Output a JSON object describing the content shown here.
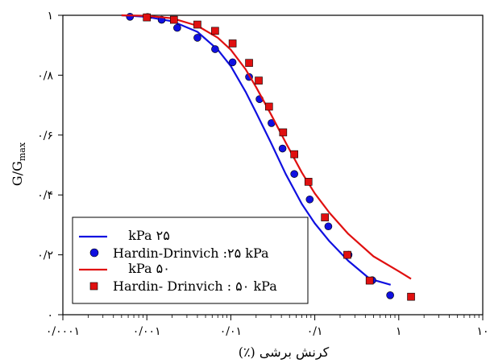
{
  "chart_data": {
    "type": "scatter",
    "x_scale": "log",
    "xlim": [
      0.0001,
      10
    ],
    "ylim": [
      0,
      1
    ],
    "xlabel": "کرنش برشی (٪)",
    "ylabel_main": "G/G",
    "ylabel_sub": "max",
    "x_ticks": [
      {
        "value": 0.0001,
        "label": "۰/۰۰۰۱"
      },
      {
        "value": 0.001,
        "label": "۰/۰۰۱"
      },
      {
        "value": 0.01,
        "label": "۰/۰۱"
      },
      {
        "value": 0.1,
        "label": "۰/۱"
      },
      {
        "value": 1,
        "label": "۱"
      },
      {
        "value": 10,
        "label": "۱۰"
      }
    ],
    "y_ticks": [
      {
        "value": 0,
        "label": "۰"
      },
      {
        "value": 0.2,
        "label": "۰/۲"
      },
      {
        "value": 0.4,
        "label": "۰/۴"
      },
      {
        "value": 0.6,
        "label": "۰/۶"
      },
      {
        "value": 0.8,
        "label": "۰/۸"
      },
      {
        "value": 1,
        "label": "۱"
      }
    ],
    "grid": false,
    "legend_position": "bottom-left",
    "series": [
      {
        "name": "۲۵ kPa",
        "kind": "line",
        "color": "#1010e0",
        "x": [
          0.0005,
          0.001,
          0.002,
          0.004,
          0.007,
          0.01,
          0.015,
          0.02,
          0.03,
          0.045,
          0.07,
          0.1,
          0.15,
          0.25,
          0.45,
          0.8
        ],
        "y": [
          1.0,
          0.995,
          0.98,
          0.945,
          0.885,
          0.83,
          0.745,
          0.675,
          0.575,
          0.47,
          0.37,
          0.305,
          0.245,
          0.18,
          0.12,
          0.1
        ]
      },
      {
        "name": "Hardin-Drinvich :۲۵ kPa",
        "kind": "scatter",
        "marker": "circle",
        "color": "#1010e0",
        "x": [
          0.00063,
          0.00102,
          0.0015,
          0.0023,
          0.004,
          0.0065,
          0.0105,
          0.0165,
          0.022,
          0.0305,
          0.0413,
          0.057,
          0.087,
          0.145,
          0.252,
          0.484,
          0.79
        ],
        "y": [
          0.995,
          0.994,
          0.985,
          0.958,
          0.925,
          0.887,
          0.843,
          0.794,
          0.72,
          0.64,
          0.555,
          0.47,
          0.385,
          0.295,
          0.2,
          0.115,
          0.065
        ]
      },
      {
        "name": "۵۰ kPa",
        "kind": "line",
        "color": "#e01010",
        "x": [
          0.0005,
          0.001,
          0.002,
          0.004,
          0.007,
          0.01,
          0.015,
          0.02,
          0.03,
          0.045,
          0.07,
          0.1,
          0.15,
          0.25,
          0.5,
          1.0,
          1.4
        ],
        "y": [
          1.0,
          0.998,
          0.99,
          0.965,
          0.925,
          0.885,
          0.82,
          0.76,
          0.67,
          0.575,
          0.475,
          0.405,
          0.34,
          0.27,
          0.195,
          0.145,
          0.12
        ]
      },
      {
        "name": "Hardin- Drinvich : ۵۰ kPa",
        "kind": "scatter",
        "marker": "square",
        "color": "#e01010",
        "x": [
          0.001,
          0.0021,
          0.004,
          0.0065,
          0.0105,
          0.0165,
          0.0215,
          0.0285,
          0.042,
          0.057,
          0.084,
          0.132,
          0.244,
          0.45,
          1.4
        ],
        "y": [
          0.993,
          0.985,
          0.969,
          0.948,
          0.906,
          0.841,
          0.782,
          0.695,
          0.609,
          0.536,
          0.444,
          0.325,
          0.2,
          0.114,
          0.06
        ]
      }
    ]
  }
}
